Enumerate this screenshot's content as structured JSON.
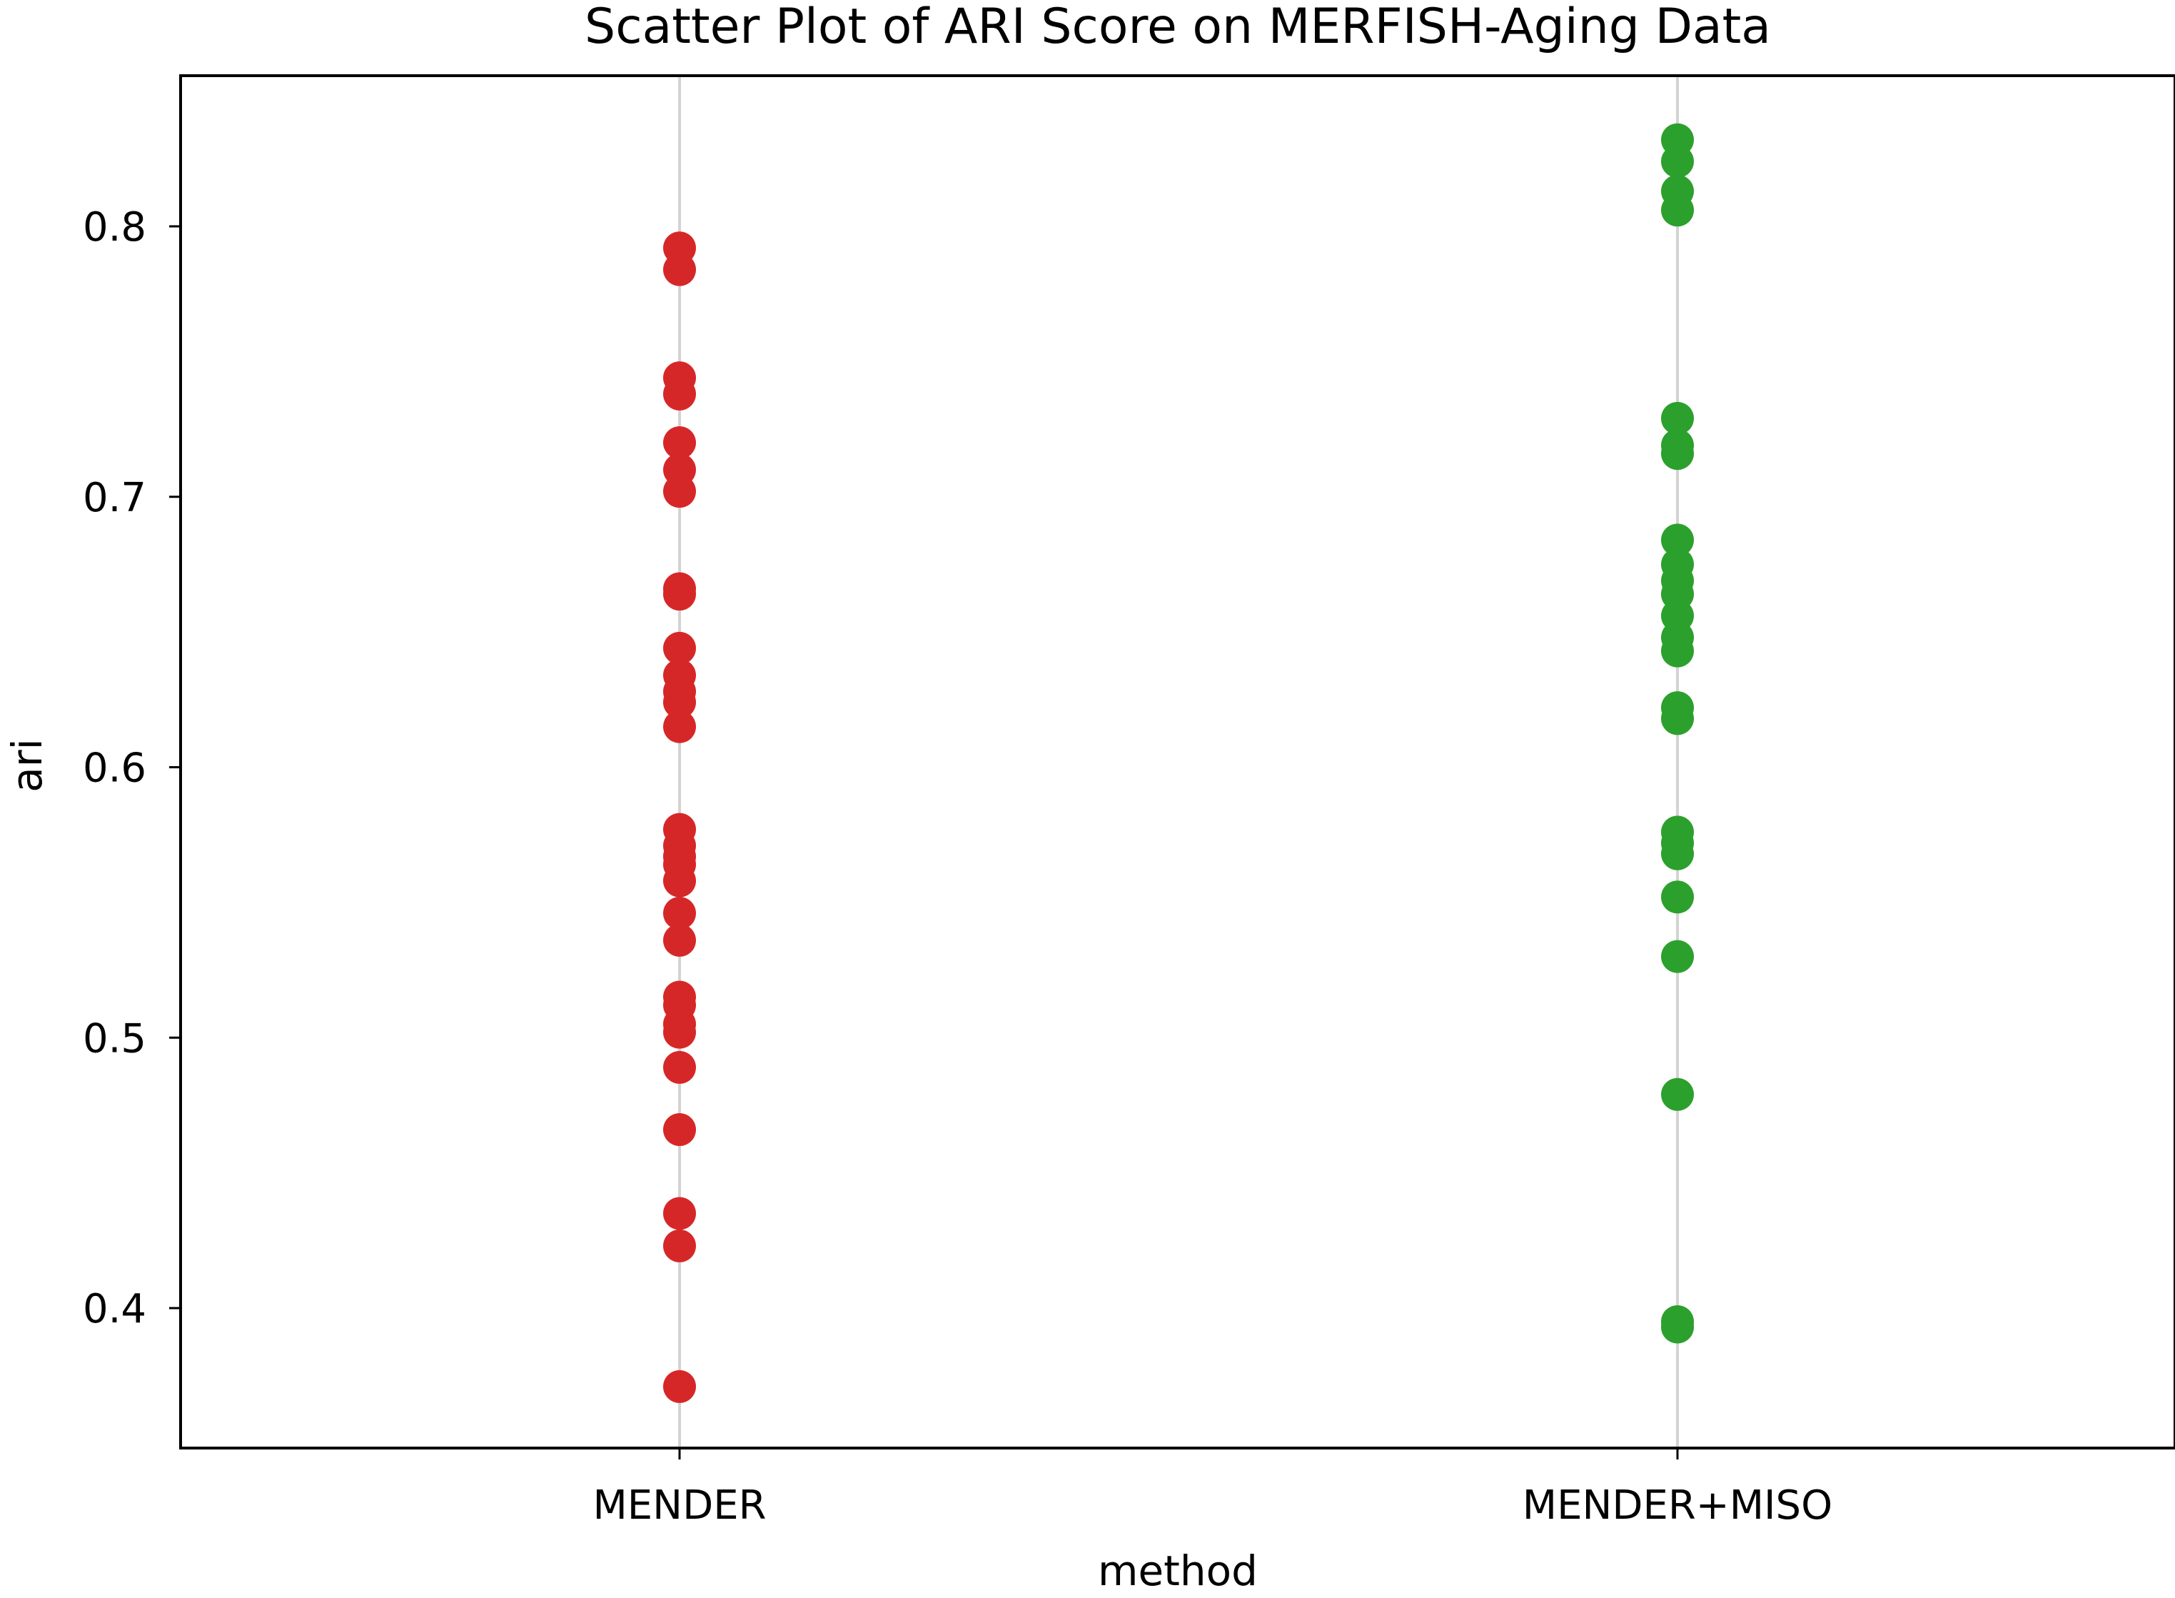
{
  "chart_data": {
    "type": "scatter",
    "title": "Scatter Plot of ARI Score on MERFISH-Aging Data",
    "xlabel": "method",
    "ylabel": "ari",
    "categories": [
      "MENDER",
      "MENDER+MISO"
    ],
    "yticks": [
      "0.4",
      "0.5",
      "0.6",
      "0.7",
      "0.8"
    ],
    "ylim": [
      0.35,
      0.855
    ],
    "grid": "vertical lines at categories",
    "legend": "none",
    "series": [
      {
        "category": "MENDER",
        "color": "#d62728",
        "values": [
          0.792,
          0.784,
          0.744,
          0.738,
          0.72,
          0.71,
          0.702,
          0.666,
          0.664,
          0.644,
          0.634,
          0.628,
          0.624,
          0.615,
          0.577,
          0.571,
          0.567,
          0.564,
          0.558,
          0.546,
          0.536,
          0.515,
          0.512,
          0.505,
          0.502,
          0.489,
          0.466,
          0.435,
          0.423,
          0.371
        ]
      },
      {
        "category": "MENDER+MISO",
        "color": "#2ca02c",
        "values": [
          0.832,
          0.824,
          0.813,
          0.806,
          0.729,
          0.719,
          0.716,
          0.684,
          0.675,
          0.669,
          0.664,
          0.656,
          0.648,
          0.643,
          0.622,
          0.618,
          0.576,
          0.572,
          0.568,
          0.552,
          0.53,
          0.479,
          0.395,
          0.393
        ]
      }
    ]
  }
}
